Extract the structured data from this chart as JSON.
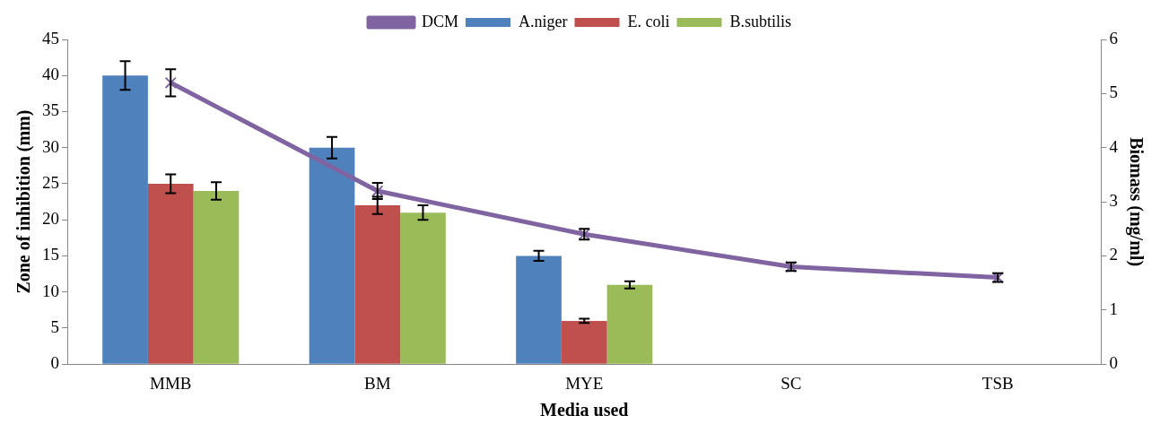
{
  "chart_data": {
    "type": "bar",
    "xlabel": "Media used",
    "ylabel": "Zone of inhibition (mm)",
    "y2label": "Biomass (mg/ml)",
    "categories": [
      "MMB",
      "BM",
      "MYE",
      "SC",
      "TSB"
    ],
    "series": [
      {
        "name": "A.niger",
        "color": "#4f81bd",
        "values": [
          40,
          30,
          15,
          0,
          0
        ],
        "errors": [
          2,
          1.5,
          0.7,
          null,
          null
        ]
      },
      {
        "name": "E. coli",
        "color": "#c0504d",
        "values": [
          25,
          22,
          6,
          0,
          0
        ],
        "errors": [
          1.3,
          1.2,
          0.3,
          null,
          null
        ]
      },
      {
        "name": "B.subtilis",
        "color": "#9bbb59",
        "values": [
          24,
          21,
          11,
          0,
          0
        ],
        "errors": [
          1.2,
          1,
          0.5,
          null,
          null
        ]
      },
      {
        "name": "DCM",
        "type": "line",
        "axis": "y2",
        "color": "#8064a2",
        "marker": "cross",
        "values": [
          5.2,
          3.2,
          2.4,
          1.8,
          1.6
        ],
        "errors": [
          0.25,
          0.15,
          0.1,
          0.08,
          0.08
        ]
      }
    ],
    "ylim": [
      0,
      45
    ],
    "yticks": [
      0,
      5,
      10,
      15,
      20,
      25,
      30,
      35,
      40,
      45
    ],
    "y2lim": [
      0,
      6
    ],
    "y2ticks": [
      0,
      1,
      2,
      3,
      4,
      5,
      6
    ],
    "grid": false,
    "legend": "top"
  }
}
